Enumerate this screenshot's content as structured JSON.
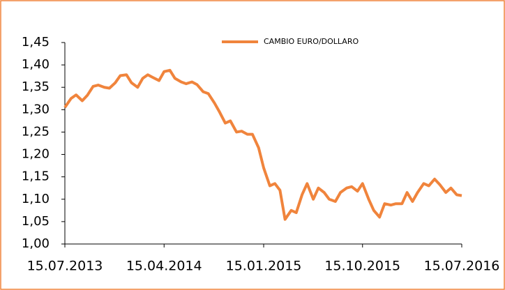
{
  "chart_data": {
    "type": "line",
    "x": [
      "2013-07-15",
      "2013-08-01",
      "2013-08-15",
      "2013-09-01",
      "2013-09-15",
      "2013-10-01",
      "2013-10-15",
      "2013-11-01",
      "2013-11-15",
      "2013-12-01",
      "2013-12-15",
      "2014-01-01",
      "2014-01-15",
      "2014-02-01",
      "2014-02-15",
      "2014-03-01",
      "2014-03-15",
      "2014-04-01",
      "2014-04-15",
      "2014-05-01",
      "2014-05-15",
      "2014-06-01",
      "2014-06-15",
      "2014-07-01",
      "2014-07-15",
      "2014-08-01",
      "2014-08-15",
      "2014-09-01",
      "2014-09-15",
      "2014-10-01",
      "2014-10-15",
      "2014-11-01",
      "2014-11-15",
      "2014-12-01",
      "2014-12-15",
      "2015-01-01",
      "2015-01-15",
      "2015-02-01",
      "2015-02-15",
      "2015-03-01",
      "2015-03-15",
      "2015-04-01",
      "2015-04-15",
      "2015-05-01",
      "2015-05-15",
      "2015-06-01",
      "2015-06-15",
      "2015-07-01",
      "2015-07-15",
      "2015-08-01",
      "2015-08-15",
      "2015-09-01",
      "2015-09-15",
      "2015-10-01",
      "2015-10-15",
      "2015-11-01",
      "2015-11-15",
      "2015-12-01",
      "2015-12-15",
      "2016-01-01",
      "2016-01-15",
      "2016-02-01",
      "2016-02-15",
      "2016-03-01",
      "2016-03-15",
      "2016-04-01",
      "2016-04-15",
      "2016-05-01",
      "2016-05-15",
      "2016-06-01",
      "2016-06-15",
      "2016-07-01",
      "2016-07-15"
    ],
    "series": [
      {
        "name": "CAMBIO EURO/DOLLARO",
        "color": "#f0843c",
        "values": [
          1.305,
          1.325,
          1.333,
          1.32,
          1.332,
          1.352,
          1.355,
          1.35,
          1.348,
          1.36,
          1.376,
          1.378,
          1.36,
          1.35,
          1.37,
          1.378,
          1.372,
          1.365,
          1.385,
          1.388,
          1.37,
          1.362,
          1.358,
          1.362,
          1.356,
          1.34,
          1.336,
          1.315,
          1.295,
          1.27,
          1.275,
          1.25,
          1.252,
          1.245,
          1.245,
          1.215,
          1.17,
          1.13,
          1.135,
          1.12,
          1.055,
          1.075,
          1.07,
          1.11,
          1.135,
          1.1,
          1.125,
          1.115,
          1.1,
          1.095,
          1.115,
          1.125,
          1.128,
          1.118,
          1.135,
          1.1,
          1.075,
          1.06,
          1.09,
          1.087,
          1.09,
          1.09,
          1.115,
          1.095,
          1.115,
          1.135,
          1.13,
          1.145,
          1.133,
          1.115,
          1.125,
          1.11,
          1.108
        ]
      }
    ],
    "xlim": [
      "2013-07-15",
      "2016-07-15"
    ],
    "xticks": [
      {
        "value": "2013-07-15",
        "label": "15.07.2013"
      },
      {
        "value": "2014-04-15",
        "label": "15.04.2014"
      },
      {
        "value": "2015-01-15",
        "label": "15.01.2015"
      },
      {
        "value": "2015-10-15",
        "label": "15.10.2015"
      },
      {
        "value": "2016-07-15",
        "label": "15.07.2016"
      }
    ],
    "ylim": [
      1.0,
      1.45
    ],
    "yticks": [
      {
        "value": 1.0,
        "label": "1,00"
      },
      {
        "value": 1.05,
        "label": "1,05"
      },
      {
        "value": 1.1,
        "label": "1,10"
      },
      {
        "value": 1.15,
        "label": "1,15"
      },
      {
        "value": 1.2,
        "label": "1,20"
      },
      {
        "value": 1.25,
        "label": "1,25"
      },
      {
        "value": 1.3,
        "label": "1,30"
      },
      {
        "value": 1.35,
        "label": "1,35"
      },
      {
        "value": 1.4,
        "label": "1,40"
      },
      {
        "value": 1.45,
        "label": "1,45"
      }
    ],
    "grid": false,
    "legend": "top"
  }
}
